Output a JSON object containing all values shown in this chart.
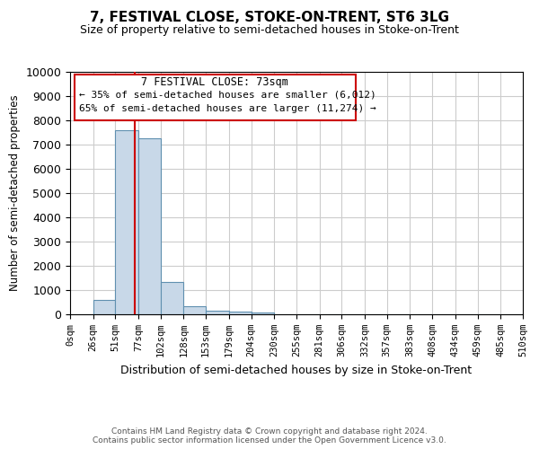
{
  "title": "7, FESTIVAL CLOSE, STOKE-ON-TRENT, ST6 3LG",
  "subtitle": "Size of property relative to semi-detached houses in Stoke-on-Trent",
  "xlabel": "Distribution of semi-detached houses by size in Stoke-on-Trent",
  "ylabel": "Number of semi-detached properties",
  "footnote": "Contains HM Land Registry data © Crown copyright and database right 2024.\nContains public sector information licensed under the Open Government Licence v3.0.",
  "annotation_title": "7 FESTIVAL CLOSE: 73sqm",
  "annotation_line1": "← 35% of semi-detached houses are smaller (6,012)",
  "annotation_line2": "65% of semi-detached houses are larger (11,274) →",
  "property_size": 73,
  "bin_edges": [
    0,
    26,
    51,
    77,
    102,
    128,
    153,
    179,
    204,
    230,
    255,
    281,
    306,
    332,
    357,
    383,
    408,
    434,
    459,
    485,
    510
  ],
  "bar_heights": [
    0,
    600,
    7600,
    7250,
    1350,
    350,
    150,
    100,
    75,
    0,
    0,
    0,
    0,
    0,
    0,
    0,
    0,
    0,
    0,
    0
  ],
  "bar_color": "#c8d8e8",
  "bar_edge_color": "#6090b0",
  "red_line_color": "#cc0000",
  "annotation_box_color": "#cc0000",
  "grid_color": "#cccccc",
  "ylim": [
    0,
    10000
  ],
  "yticks": [
    0,
    1000,
    2000,
    3000,
    4000,
    5000,
    6000,
    7000,
    8000,
    9000,
    10000
  ],
  "xtick_labels": [
    "0sqm",
    "26sqm",
    "51sqm",
    "77sqm",
    "102sqm",
    "128sqm",
    "153sqm",
    "179sqm",
    "204sqm",
    "230sqm",
    "255sqm",
    "281sqm",
    "306sqm",
    "332sqm",
    "357sqm",
    "383sqm",
    "408sqm",
    "434sqm",
    "459sqm",
    "485sqm",
    "510sqm"
  ]
}
